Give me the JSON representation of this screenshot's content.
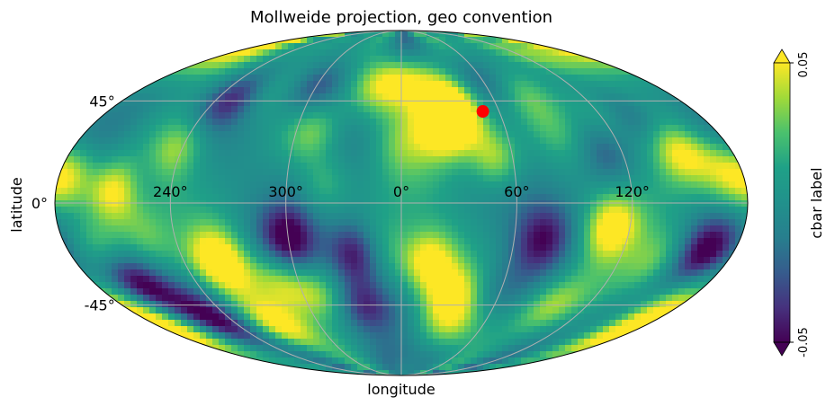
{
  "chart_data": {
    "type": "heatmap",
    "projection": "mollweide",
    "title": "Mollweide projection, geo convention",
    "xlabel": "longitude",
    "ylabel": "latitude",
    "x_tick_labels": [
      {
        "lon": 240,
        "label": "240°"
      },
      {
        "lon": 300,
        "label": "300°"
      },
      {
        "lon": 0,
        "label": "0°"
      },
      {
        "lon": 60,
        "label": "60°"
      },
      {
        "lon": 120,
        "label": "120°"
      }
    ],
    "y_tick_labels": [
      {
        "lat": 45,
        "label": "45°"
      },
      {
        "lat": 0,
        "label": "0°"
      },
      {
        "lat": -45,
        "label": "-45°"
      }
    ],
    "meridians": [
      180,
      240,
      300,
      0,
      60,
      120
    ],
    "parallels": [
      45,
      0,
      -45
    ],
    "colorbar": {
      "label": "cbar label",
      "min": -0.05,
      "max": 0.05,
      "min_label": "-0.05",
      "max_label": "0.05",
      "extend": "both",
      "colormap": "viridis"
    },
    "marker": {
      "lon": 50,
      "lat": 40,
      "color": "#ff0000"
    },
    "grid": true,
    "blobs": [
      {
        "lon": -150,
        "lat": 5,
        "v": 1
      },
      {
        "lon": -175,
        "lat": 10,
        "v": 1
      },
      {
        "lon": -135,
        "lat": 15,
        "v": -0.4
      },
      {
        "lon": -110,
        "lat": 45,
        "v": -0.8
      },
      {
        "lon": -125,
        "lat": 22,
        "v": 0.6
      },
      {
        "lon": -90,
        "lat": 50,
        "v": 0.5
      },
      {
        "lon": -60,
        "lat": 52,
        "v": -0.7
      },
      {
        "lon": -50,
        "lat": 30,
        "v": 0.6
      },
      {
        "lon": -40,
        "lat": 8,
        "v": 0.5
      },
      {
        "lon": -20,
        "lat": 50,
        "v": 0.6
      },
      {
        "lon": 0,
        "lat": 55,
        "v": 0.7
      },
      {
        "lon": 0,
        "lat": 25,
        "v": 0.3
      },
      {
        "lon": 30,
        "lat": 50,
        "v": 0.6
      },
      {
        "lon": 25,
        "lat": 32,
        "v": 1
      },
      {
        "lon": 35,
        "lat": 40,
        "v": 0.9
      },
      {
        "lon": 50,
        "lat": 20,
        "v": 0.9
      },
      {
        "lon": 60,
        "lat": 55,
        "v": -0.7
      },
      {
        "lon": 80,
        "lat": 50,
        "v": 0.5
      },
      {
        "lon": 90,
        "lat": 30,
        "v": 0.3
      },
      {
        "lon": 110,
        "lat": 20,
        "v": -0.4
      },
      {
        "lon": 120,
        "lat": 40,
        "v": 0.4
      },
      {
        "lon": 140,
        "lat": 35,
        "v": -0.6
      },
      {
        "lon": 150,
        "lat": 22,
        "v": 0.8
      },
      {
        "lon": 170,
        "lat": 12,
        "v": 0.7
      },
      {
        "lon": -135,
        "lat": -15,
        "v": 0.5
      },
      {
        "lon": -160,
        "lat": -18,
        "v": 0.5
      },
      {
        "lon": -155,
        "lat": -35,
        "v": -1
      },
      {
        "lon": -130,
        "lat": -52,
        "v": -0.9
      },
      {
        "lon": -165,
        "lat": -52,
        "v": 0.4
      },
      {
        "lon": -100,
        "lat": -25,
        "v": 1
      },
      {
        "lon": -90,
        "lat": -55,
        "v": 1
      },
      {
        "lon": -70,
        "lat": -35,
        "v": 0.8
      },
      {
        "lon": -60,
        "lat": -15,
        "v": -0.8
      },
      {
        "lon": -50,
        "lat": -40,
        "v": 0.7
      },
      {
        "lon": -25,
        "lat": -22,
        "v": -1
      },
      {
        "lon": -25,
        "lat": -45,
        "v": -0.9
      },
      {
        "lon": -10,
        "lat": -20,
        "v": 0.3
      },
      {
        "lon": 15,
        "lat": -25,
        "v": 1
      },
      {
        "lon": 30,
        "lat": -40,
        "v": 0.9
      },
      {
        "lon": 35,
        "lat": -55,
        "v": 0.6
      },
      {
        "lon": 55,
        "lat": -40,
        "v": -0.3
      },
      {
        "lon": 75,
        "lat": -15,
        "v": -0.6
      },
      {
        "lon": 95,
        "lat": -45,
        "v": 0.7
      },
      {
        "lon": 110,
        "lat": -10,
        "v": 0.9
      },
      {
        "lon": 140,
        "lat": -25,
        "v": 0.5
      },
      {
        "lon": 165,
        "lat": -20,
        "v": -0.9
      },
      {
        "lon": 170,
        "lat": -45,
        "v": 0.6
      },
      {
        "lon": 175,
        "lat": -60,
        "v": 0.8
      },
      {
        "lon": 140,
        "lat": 70,
        "v": 0.8
      },
      {
        "lon": -150,
        "lat": 70,
        "v": 0.6
      },
      {
        "lon": 0,
        "lat": -70,
        "v": -0.2
      }
    ]
  }
}
